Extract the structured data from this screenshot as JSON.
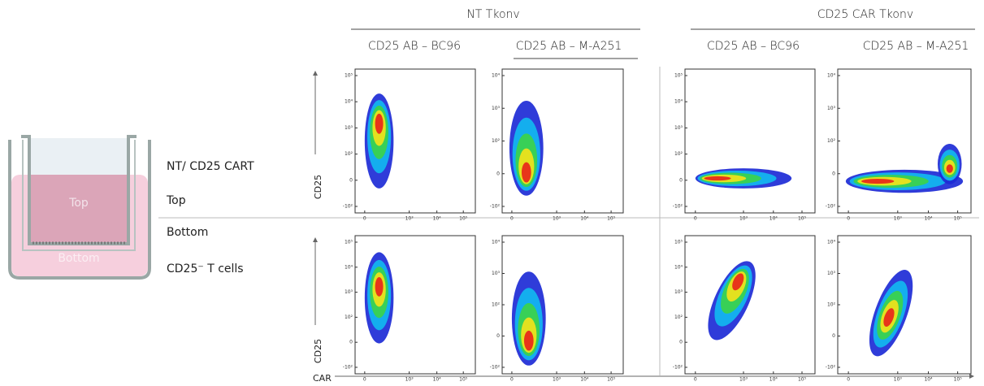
{
  "column_groups": [
    {
      "title": "NT Tkonv",
      "columns": [
        "CD25 AB – BC96",
        "CD25 AB – M-A251"
      ]
    },
    {
      "title": "CD25 CAR Tkonv",
      "columns": [
        "CD25 AB – BC96",
        "CD25 AB – M-A251"
      ]
    }
  ],
  "row_labels": [
    "NT/ CD25 CART",
    "Top",
    "Bottom",
    "CD25⁻ T cells"
  ],
  "transwell": {
    "top": "Top",
    "bottom": "Bottom"
  },
  "axis_labels": {
    "y": [
      "CD25",
      "CD25"
    ],
    "x": "CAR"
  },
  "plots": [
    {
      "y_ticks": [
        "10⁵",
        "10⁴",
        "10³",
        "10²",
        "0",
        "-10²"
      ],
      "x_ticks": [
        "0",
        "10³",
        "10⁴",
        "10⁵"
      ]
    },
    {
      "y_ticks": [
        "10⁴",
        "10³",
        "10²",
        "0",
        "-10²"
      ],
      "x_ticks": [
        "0",
        "10³",
        "10⁴",
        "10⁵"
      ]
    },
    {
      "y_ticks": [
        "10⁵",
        "10⁴",
        "10³",
        "10²",
        "0",
        "-10²"
      ],
      "x_ticks": [
        "0",
        "10³",
        "10⁴",
        "10⁵"
      ]
    },
    {
      "y_ticks": [
        "10⁴",
        "10³",
        "10²",
        "0",
        "-10²"
      ],
      "x_ticks": [
        "0",
        "10³",
        "10⁴",
        "10⁵"
      ]
    },
    {
      "y_ticks": [
        "10⁵",
        "10⁴",
        "10³",
        "10²",
        "0",
        "-10²"
      ],
      "x_ticks": [
        "0",
        "10³",
        "10⁴",
        "10⁵"
      ]
    },
    {
      "y_ticks": [
        "10⁴",
        "10³",
        "10²",
        "0",
        "-10²"
      ],
      "x_ticks": [
        "0",
        "10³",
        "10⁴",
        "10⁵"
      ]
    },
    {
      "y_ticks": [
        "10⁵",
        "10⁴",
        "10³",
        "10²",
        "0",
        "-10²"
      ],
      "x_ticks": [
        "0",
        "10³",
        "10⁴",
        "10⁵"
      ]
    },
    {
      "y_ticks": [
        "10⁴",
        "10³",
        "10²",
        "0",
        "-10²"
      ],
      "x_ticks": [
        "0",
        "10³",
        "10⁴",
        "10⁵"
      ]
    }
  ]
}
